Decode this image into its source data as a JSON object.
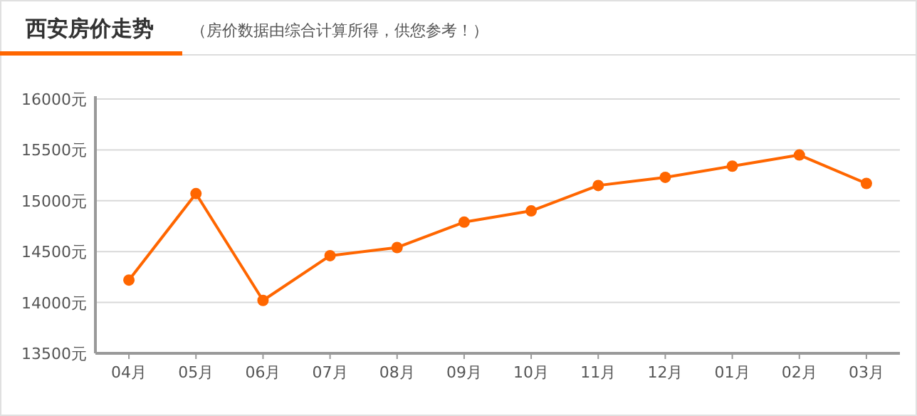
{
  "chart_data": {
    "type": "line",
    "title": "西安房价走势",
    "subtitle": "（房价数据由综合计算所得，供您参考！）",
    "categories": [
      "04月",
      "05月",
      "06月",
      "07月",
      "08月",
      "09月",
      "10月",
      "11月",
      "12月",
      "01月",
      "02月",
      "03月"
    ],
    "series": [
      {
        "color": "#ff6600",
        "values": [
          14220,
          15070,
          14020,
          14460,
          14540,
          14790,
          14900,
          15150,
          15230,
          15340,
          15450,
          15170
        ]
      }
    ],
    "ylim": [
      13500,
      16000
    ],
    "yticks": [
      {
        "value": 13500,
        "label": "13500元"
      },
      {
        "value": 14000,
        "label": "14000元"
      },
      {
        "value": 14500,
        "label": "14500元"
      },
      {
        "value": 15000,
        "label": "15000元"
      },
      {
        "value": 15500,
        "label": "15500元"
      },
      {
        "value": 16000,
        "label": "16000元"
      }
    ],
    "grid": "y",
    "marker": "circle",
    "line_style": "solid"
  }
}
